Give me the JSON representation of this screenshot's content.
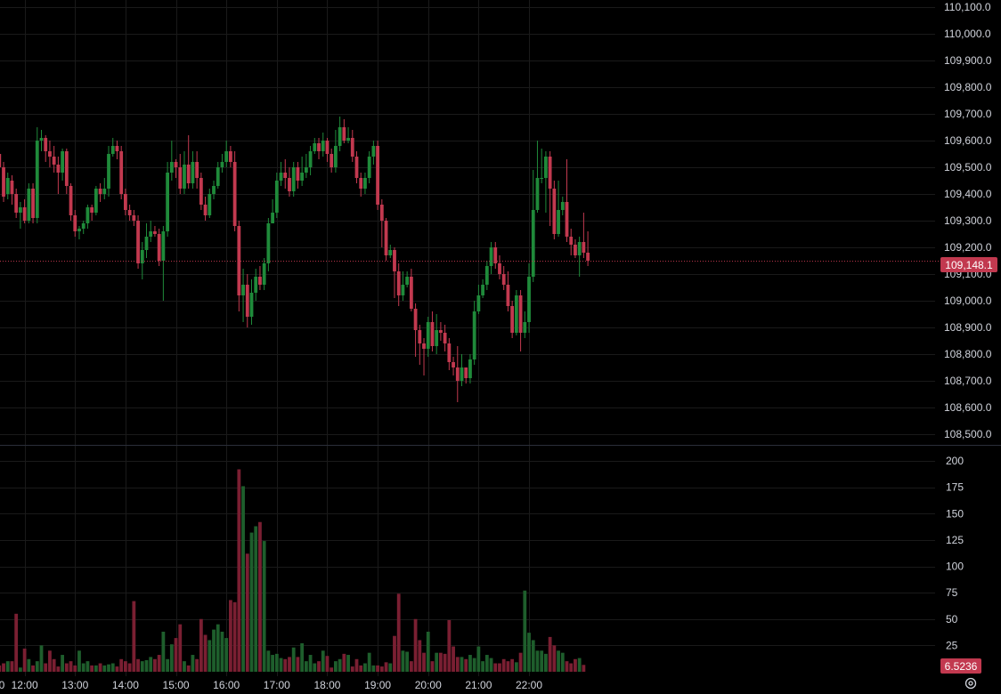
{
  "colors": {
    "background": "#000000",
    "grid": "#1a1a1a",
    "up": "#1f8a3a",
    "down": "#c2394f",
    "volume_up": "#1e5e2c",
    "volume_down": "#7a1f32",
    "price_line": "#c2394f",
    "axis_text": "#d1d4dc"
  },
  "price_axis": {
    "ticks": [
      "110,100.0",
      "110,000.0",
      "109,900.0",
      "109,800.0",
      "109,700.0",
      "109,600.0",
      "109,500.0",
      "109,400.0",
      "109,300.0",
      "109,200.0",
      "109,100.0",
      "109,000.0",
      "108,900.0",
      "108,800.0",
      "108,700.0",
      "108,600.0",
      "108,500.0"
    ]
  },
  "volume_axis": {
    "ticks": [
      "200",
      "175",
      "150",
      "125",
      "100",
      "75",
      "50",
      "25"
    ]
  },
  "time_axis": {
    "ticks": [
      "0",
      "12:00",
      "13:00",
      "14:00",
      "15:00",
      "16:00",
      "17:00",
      "18:00",
      "19:00",
      "20:00",
      "21:00",
      "22:00"
    ]
  },
  "last_price_label": "109,148.1",
  "last_volume_label": "6.5236",
  "settings_icon": "gear-icon",
  "chart_data": {
    "type": "candlestick",
    "interval_minutes": 5,
    "time_start": "11:30",
    "price_range": [
      108480,
      110110
    ],
    "volume_range": [
      0,
      205
    ],
    "last_price": 109148.1,
    "last_volume": 6.5236,
    "candles": [
      [
        109550,
        109500,
        109570,
        109360
      ],
      [
        109500,
        109390,
        109520,
        109370
      ],
      [
        109400,
        109460,
        109480,
        109380
      ],
      [
        109450,
        109400,
        109470,
        109360
      ],
      [
        109400,
        109330,
        109420,
        109310
      ],
      [
        109330,
        109350,
        109370,
        109270
      ],
      [
        109350,
        109300,
        109380,
        109290
      ],
      [
        109300,
        109420,
        109440,
        109290
      ],
      [
        109420,
        109310,
        109440,
        109290
      ],
      [
        109310,
        109600,
        109650,
        109290
      ],
      [
        109600,
        109610,
        109640,
        109560
      ],
      [
        109610,
        109560,
        109620,
        109520
      ],
      [
        109560,
        109540,
        109600,
        109500
      ],
      [
        109540,
        109510,
        109580,
        109480
      ],
      [
        109510,
        109480,
        109540,
        109400
      ],
      [
        109480,
        109560,
        109570,
        109450
      ],
      [
        109560,
        109430,
        109570,
        109400
      ],
      [
        109430,
        109320,
        109440,
        109300
      ],
      [
        109320,
        109260,
        109340,
        109240
      ],
      [
        109260,
        109270,
        109280,
        109230
      ],
      [
        109270,
        109290,
        109300,
        109250
      ],
      [
        109290,
        109350,
        109360,
        109270
      ],
      [
        109350,
        109330,
        109360,
        109300
      ],
      [
        109330,
        109420,
        109430,
        109320
      ],
      [
        109420,
        109400,
        109440,
        109370
      ],
      [
        109400,
        109420,
        109460,
        109380
      ],
      [
        109420,
        109550,
        109580,
        109390
      ],
      [
        109550,
        109580,
        109610,
        109540
      ],
      [
        109580,
        109560,
        109600,
        109530
      ],
      [
        109560,
        109400,
        109580,
        109380
      ],
      [
        109400,
        109340,
        109420,
        109320
      ],
      [
        109340,
        109320,
        109360,
        109300
      ],
      [
        109320,
        109300,
        109340,
        109280
      ],
      [
        109300,
        109140,
        109320,
        109120
      ],
      [
        109140,
        109190,
        109220,
        109080
      ],
      [
        109190,
        109240,
        109290,
        109160
      ],
      [
        109240,
        109260,
        109300,
        109220
      ],
      [
        109260,
        109250,
        109280,
        109240
      ],
      [
        109250,
        109150,
        109270,
        109130
      ],
      [
        109150,
        109260,
        109280,
        109000
      ],
      [
        109260,
        109480,
        109520,
        109240
      ],
      [
        109480,
        109520,
        109600,
        109450
      ],
      [
        109520,
        109500,
        109530,
        109460
      ],
      [
        109500,
        109420,
        109550,
        109400
      ],
      [
        109420,
        109510,
        109560,
        109400
      ],
      [
        109510,
        109440,
        109620,
        109420
      ],
      [
        109440,
        109520,
        109560,
        109420
      ],
      [
        109520,
        109460,
        109560,
        109420
      ],
      [
        109460,
        109360,
        109480,
        109340
      ],
      [
        109360,
        109320,
        109390,
        109300
      ],
      [
        109320,
        109400,
        109420,
        109310
      ],
      [
        109400,
        109430,
        109450,
        109380
      ],
      [
        109430,
        109500,
        109520,
        109420
      ],
      [
        109500,
        109520,
        109550,
        109480
      ],
      [
        109520,
        109560,
        109600,
        109500
      ],
      [
        109560,
        109520,
        109580,
        109500
      ],
      [
        109520,
        109280,
        109560,
        109260
      ],
      [
        109280,
        109020,
        109300,
        108960
      ],
      [
        109020,
        109060,
        109120,
        108920
      ],
      [
        109060,
        108940,
        109100,
        108900
      ],
      [
        108940,
        109030,
        109080,
        108910
      ],
      [
        109030,
        109090,
        109120,
        109000
      ],
      [
        109090,
        109060,
        109130,
        109040
      ],
      [
        109060,
        109140,
        109160,
        109040
      ],
      [
        109140,
        109290,
        109310,
        109110
      ],
      [
        109290,
        109330,
        109380,
        109290
      ],
      [
        109330,
        109450,
        109480,
        109310
      ],
      [
        109450,
        109480,
        109520,
        109430
      ],
      [
        109480,
        109460,
        109530,
        109420
      ],
      [
        109460,
        109410,
        109500,
        109390
      ],
      [
        109410,
        109500,
        109520,
        109390
      ],
      [
        109500,
        109450,
        109520,
        109420
      ],
      [
        109450,
        109480,
        109540,
        109430
      ],
      [
        109480,
        109500,
        109550,
        109460
      ],
      [
        109500,
        109560,
        109580,
        109470
      ],
      [
        109560,
        109590,
        109610,
        109550
      ],
      [
        109590,
        109560,
        109610,
        109530
      ],
      [
        109560,
        109600,
        109630,
        109540
      ],
      [
        109600,
        109550,
        109610,
        109520
      ],
      [
        109550,
        109500,
        109570,
        109480
      ],
      [
        109500,
        109580,
        109640,
        109480
      ],
      [
        109580,
        109650,
        109690,
        109560
      ],
      [
        109650,
        109600,
        109680,
        109590
      ],
      [
        109600,
        109610,
        109650,
        109590
      ],
      [
        109610,
        109540,
        109640,
        109520
      ],
      [
        109540,
        109460,
        109560,
        109440
      ],
      [
        109460,
        109420,
        109480,
        109390
      ],
      [
        109420,
        109460,
        109480,
        109400
      ],
      [
        109460,
        109540,
        109560,
        109440
      ],
      [
        109540,
        109580,
        109600,
        109510
      ],
      [
        109580,
        109360,
        109600,
        109340
      ],
      [
        109360,
        109300,
        109380,
        109200
      ],
      [
        109300,
        109170,
        109310,
        109150
      ],
      [
        109170,
        109190,
        109210,
        109160
      ],
      [
        109190,
        109110,
        109200,
        109010
      ],
      [
        109110,
        109020,
        109140,
        108980
      ],
      [
        109020,
        109060,
        109110,
        109000
      ],
      [
        109060,
        109090,
        109110,
        109050
      ],
      [
        109090,
        108970,
        109120,
        108960
      ],
      [
        108970,
        108890,
        108990,
        108790
      ],
      [
        108890,
        108840,
        108910,
        108760
      ],
      [
        108840,
        108820,
        108860,
        108720
      ],
      [
        108820,
        108920,
        108940,
        108790
      ],
      [
        108920,
        108830,
        108960,
        108810
      ],
      [
        108830,
        108890,
        108950,
        108800
      ],
      [
        108890,
        108880,
        108920,
        108850
      ],
      [
        108880,
        108840,
        108910,
        108810
      ],
      [
        108840,
        108770,
        108860,
        108740
      ],
      [
        108770,
        108750,
        108790,
        108720
      ],
      [
        108750,
        108700,
        108830,
        108620
      ],
      [
        108700,
        108750,
        108800,
        108680
      ],
      [
        108750,
        108710,
        108730,
        108690
      ],
      [
        108710,
        108780,
        108800,
        108690
      ],
      [
        108780,
        108960,
        109000,
        108760
      ],
      [
        108960,
        109020,
        109060,
        108950
      ],
      [
        109020,
        109060,
        109080,
        109010
      ],
      [
        109060,
        109130,
        109150,
        109040
      ],
      [
        109130,
        109200,
        109220,
        109100
      ],
      [
        109200,
        109140,
        109220,
        109120
      ],
      [
        109140,
        109100,
        109170,
        109080
      ],
      [
        109100,
        109060,
        109130,
        109040
      ],
      [
        109060,
        108980,
        109110,
        108960
      ],
      [
        108980,
        108880,
        109000,
        108860
      ],
      [
        108880,
        109020,
        109040,
        108870
      ],
      [
        109020,
        108880,
        109040,
        108810
      ],
      [
        108880,
        108920,
        108960,
        108860
      ],
      [
        108920,
        109090,
        109140,
        108880
      ],
      [
        109090,
        109340,
        109490,
        109070
      ],
      [
        109340,
        109460,
        109600,
        109330
      ],
      [
        109460,
        109460,
        109570,
        109440
      ],
      [
        109460,
        109540,
        109560,
        109330
      ],
      [
        109540,
        109420,
        109560,
        109280
      ],
      [
        109420,
        109250,
        109450,
        109230
      ],
      [
        109250,
        109340,
        109450,
        109240
      ],
      [
        109340,
        109370,
        109390,
        109320
      ],
      [
        109370,
        109240,
        109530,
        109220
      ],
      [
        109240,
        109210,
        109270,
        109170
      ],
      [
        109210,
        109170,
        109230,
        109160
      ],
      [
        109170,
        109220,
        109240,
        109090
      ],
      [
        109220,
        109180,
        109330,
        109160
      ],
      [
        109180,
        109150,
        109260,
        109130
      ]
    ],
    "volume": [
      6,
      8,
      10,
      10,
      55,
      4,
      22,
      12,
      6,
      10,
      25,
      8,
      20,
      12,
      5,
      16,
      8,
      10,
      6,
      20,
      8,
      10,
      6,
      6,
      8,
      6,
      7,
      8,
      5,
      12,
      10,
      8,
      67,
      12,
      10,
      11,
      14,
      12,
      16,
      38,
      12,
      26,
      32,
      45,
      10,
      6,
      16,
      12,
      50,
      35,
      30,
      40,
      45,
      38,
      32,
      68,
      66,
      192,
      176,
      112,
      132,
      138,
      142,
      124,
      20,
      16,
      17,
      13,
      12,
      14,
      23,
      14,
      27,
      10,
      16,
      8,
      10,
      20,
      15,
      4,
      10,
      12,
      17,
      16,
      5,
      12,
      6,
      8,
      18,
      6,
      6,
      5,
      9,
      8,
      34,
      74,
      20,
      19,
      10,
      50,
      30,
      18,
      38,
      10,
      18,
      18,
      17,
      49,
      24,
      14,
      14,
      12,
      16,
      13,
      24,
      10,
      16,
      13,
      8,
      8,
      12,
      10,
      12,
      9,
      18,
      77,
      37,
      30,
      20,
      20,
      17,
      33,
      25,
      20,
      18,
      10,
      8,
      12,
      13,
      6.5236
    ]
  }
}
